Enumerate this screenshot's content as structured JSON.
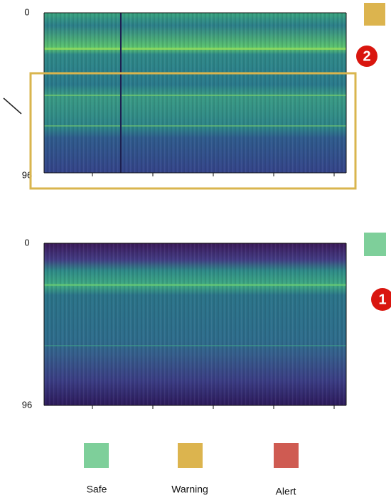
{
  "panels": [
    {
      "y_labels": [
        "0",
        "96"
      ],
      "badge": "2"
    },
    {
      "y_labels": [
        "0",
        "96"
      ],
      "badge": "1"
    }
  ],
  "legend": [
    {
      "label": "Safe"
    },
    {
      "label": "Warning"
    },
    {
      "label": "Alert"
    }
  ]
}
